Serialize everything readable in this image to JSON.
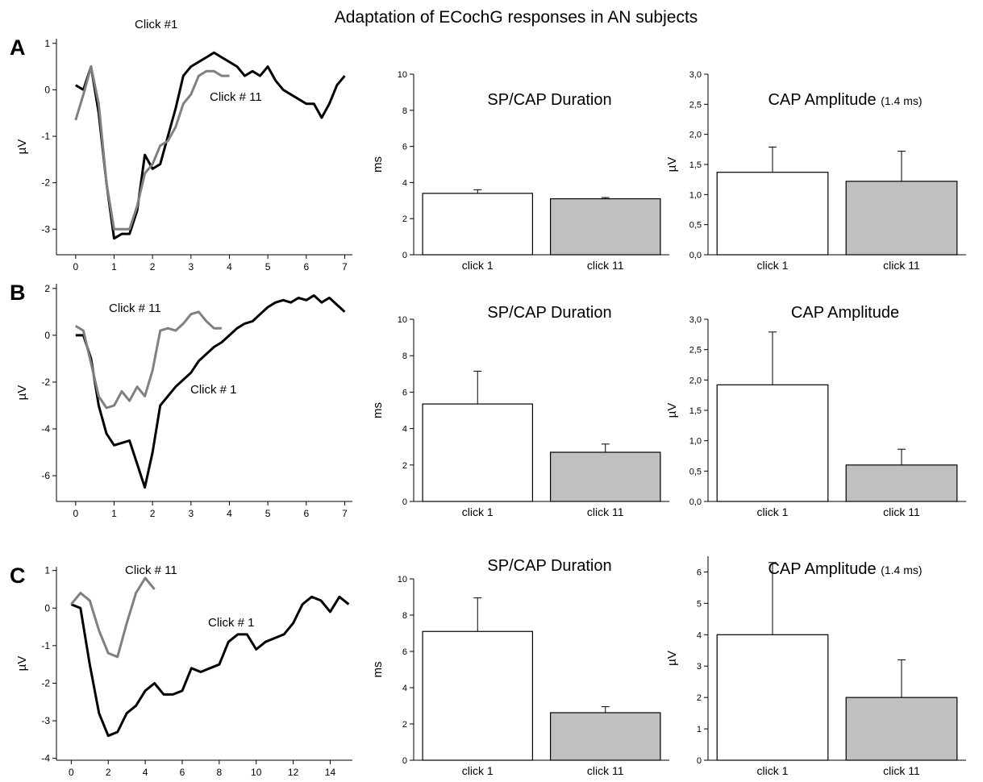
{
  "title": "Adaptation of ECochG responses in AN subjects",
  "chart_data": [
    {
      "type": "line",
      "panel": "A",
      "ylabel": "µV",
      "x": [
        0,
        0.2,
        0.4,
        0.6,
        0.8,
        1.0,
        1.2,
        1.4,
        1.6,
        1.8,
        2.0,
        2.2,
        2.4,
        2.6,
        2.8,
        3.0,
        3.2,
        3.4,
        3.6,
        3.8,
        4.0,
        4.2,
        4.4,
        4.6,
        4.8,
        5.0,
        5.2,
        5.4,
        5.6,
        5.8,
        6.0,
        6.2,
        6.4,
        6.6,
        6.8,
        7.0
      ],
      "series": [
        {
          "name": "Click #1",
          "color": "#000000",
          "values": [
            0.1,
            0.0,
            0.5,
            -0.5,
            -2.0,
            -3.2,
            -3.1,
            -3.1,
            -2.6,
            -1.4,
            -1.7,
            -1.6,
            -1.0,
            -0.4,
            0.3,
            0.5,
            0.6,
            0.7,
            0.8,
            0.7,
            0.6,
            0.5,
            0.3,
            0.4,
            0.3,
            0.5,
            0.2,
            0.0,
            -0.1,
            -0.2,
            -0.3,
            -0.3,
            -0.6,
            -0.3,
            0.1,
            0.3
          ]
        },
        {
          "name": "Click # 11",
          "color": "#808080",
          "values": [
            -0.65,
            -0.1,
            0.5,
            -0.3,
            -2.0,
            -3.0,
            -3.0,
            -3.0,
            -2.5,
            -1.8,
            -1.6,
            -1.2,
            -1.1,
            -0.8,
            -0.3,
            -0.1,
            0.3,
            0.4,
            0.4,
            0.3,
            0.3,
            null,
            null,
            null,
            null,
            null,
            null,
            null,
            null,
            null,
            null,
            null,
            null,
            null,
            null,
            null
          ]
        }
      ],
      "xlim": [
        -0.5,
        7.2
      ],
      "xticks": [
        0,
        1,
        2,
        3,
        4,
        5,
        6,
        7
      ],
      "ylim": [
        -3.55,
        1.1
      ],
      "yticks": [
        -3,
        -2,
        -1,
        0,
        1
      ]
    },
    {
      "type": "bar",
      "title": "SP/CAP Duration",
      "ylabel": "ms",
      "categories": [
        "click 1",
        "click 11"
      ],
      "values": [
        3.4,
        3.1
      ],
      "errors": [
        0.2,
        0.07
      ],
      "colors": [
        "#ffffff",
        "#c0c0c0"
      ],
      "ylim": [
        0,
        10
      ],
      "yticks": [
        0,
        2,
        4,
        6,
        8,
        10
      ]
    },
    {
      "type": "bar",
      "title": "CAP Amplitude",
      "subtitle": "(1.4 ms)",
      "ylabel": "µV",
      "categories": [
        "click 1",
        "click 11"
      ],
      "values": [
        1.37,
        1.22
      ],
      "errors": [
        0.42,
        0.5
      ],
      "colors": [
        "#ffffff",
        "#c0c0c0"
      ],
      "ylim": [
        0,
        3
      ],
      "yticks": [
        {
          "value": 0,
          "label": "0,0"
        },
        {
          "value": 0.5,
          "label": "0,5"
        },
        {
          "value": 1,
          "label": "1,0"
        },
        {
          "value": 1.5,
          "label": "1,5"
        },
        {
          "value": 2,
          "label": "2,0"
        },
        {
          "value": 2.5,
          "label": "2,5"
        },
        {
          "value": 3,
          "label": "3,0"
        }
      ]
    },
    {
      "type": "line",
      "panel": "B",
      "ylabel": "µV",
      "x": [
        0,
        0.2,
        0.4,
        0.6,
        0.8,
        1.0,
        1.2,
        1.4,
        1.6,
        1.8,
        2.0,
        2.2,
        2.4,
        2.6,
        2.8,
        3.0,
        3.2,
        3.4,
        3.6,
        3.8,
        4.0,
        4.2,
        4.4,
        4.6,
        4.8,
        5.0,
        5.2,
        5.4,
        5.6,
        5.8,
        6.0,
        6.2,
        6.4,
        6.6,
        6.8,
        7.0
      ],
      "series": [
        {
          "name": "Click # 1",
          "color": "#000000",
          "values": [
            0.0,
            0.0,
            -1.0,
            -3.0,
            -4.2,
            -4.7,
            -4.6,
            -4.5,
            -5.5,
            -6.5,
            -5.0,
            -3.0,
            -2.6,
            -2.2,
            -1.9,
            -1.6,
            -1.1,
            -0.8,
            -0.5,
            -0.3,
            0.0,
            0.3,
            0.5,
            0.6,
            0.9,
            1.2,
            1.4,
            1.5,
            1.4,
            1.6,
            1.5,
            1.7,
            1.4,
            1.6,
            1.3,
            1.0
          ]
        },
        {
          "name": "Click # 11",
          "color": "#808080",
          "values": [
            0.4,
            0.2,
            -1.2,
            -2.6,
            -3.1,
            -3.0,
            -2.4,
            -2.8,
            -2.2,
            -2.6,
            -1.5,
            0.2,
            0.3,
            0.2,
            0.5,
            0.9,
            1.0,
            0.6,
            0.3,
            0.3,
            null,
            null,
            null,
            null,
            null,
            null,
            null,
            null,
            null,
            null,
            null,
            null,
            null,
            null,
            null,
            null
          ]
        }
      ],
      "xlim": [
        -0.5,
        7.2
      ],
      "xticks": [
        0,
        1,
        2,
        3,
        4,
        5,
        6,
        7
      ],
      "ylim": [
        -7.1,
        2.2
      ],
      "yticks": [
        -6,
        -4,
        -2,
        0,
        2
      ]
    },
    {
      "type": "bar",
      "title": "SP/CAP Duration",
      "ylabel": "ms",
      "categories": [
        "click 1",
        "click 11"
      ],
      "values": [
        5.35,
        2.7
      ],
      "errors": [
        1.8,
        0.45
      ],
      "colors": [
        "#ffffff",
        "#c0c0c0"
      ],
      "ylim": [
        0,
        10
      ],
      "yticks": [
        0,
        2,
        4,
        6,
        8,
        10
      ]
    },
    {
      "type": "bar",
      "title": "CAP Amplitude",
      "ylabel": "µV",
      "categories": [
        "click 1",
        "click 11"
      ],
      "values": [
        1.92,
        0.6
      ],
      "errors": [
        0.87,
        0.26
      ],
      "colors": [
        "#ffffff",
        "#c0c0c0"
      ],
      "ylim": [
        0,
        3
      ],
      "yticks": [
        {
          "value": 0,
          "label": "0,0"
        },
        {
          "value": 0.5,
          "label": "0,5"
        },
        {
          "value": 1,
          "label": "1,0"
        },
        {
          "value": 1.5,
          "label": "1,5"
        },
        {
          "value": 2,
          "label": "2,0"
        },
        {
          "value": 2.5,
          "label": "2,5"
        },
        {
          "value": 3,
          "label": "3,0"
        }
      ]
    },
    {
      "type": "line",
      "panel": "C",
      "ylabel": "µV",
      "x": [
        0,
        0.5,
        1.0,
        1.5,
        2.0,
        2.5,
        3.0,
        3.5,
        4.0,
        4.5,
        5.0,
        5.5,
        6.0,
        6.5,
        7.0,
        7.5,
        8.0,
        8.5,
        9.0,
        9.5,
        10.0,
        10.5,
        11.0,
        11.5,
        12.0,
        12.5,
        13.0,
        13.5,
        14.0,
        14.5,
        15.0
      ],
      "series": [
        {
          "name": "Click # 1",
          "color": "#000000",
          "values": [
            0.1,
            0.0,
            -1.5,
            -2.8,
            -3.4,
            -3.3,
            -2.8,
            -2.6,
            -2.2,
            -2.0,
            -2.3,
            -2.3,
            -2.2,
            -1.6,
            -1.7,
            -1.6,
            -1.5,
            -0.9,
            -0.7,
            -0.7,
            -1.1,
            -0.9,
            -0.8,
            -0.7,
            -0.4,
            0.1,
            0.3,
            0.2,
            -0.1,
            0.3,
            0.1
          ]
        },
        {
          "name": "Click # 11",
          "color": "#808080",
          "values": [
            0.1,
            0.4,
            0.2,
            -0.6,
            -1.2,
            -1.3,
            -0.4,
            0.4,
            0.8,
            0.5,
            null,
            null,
            null,
            null,
            null,
            null,
            null,
            null,
            null,
            null,
            null,
            null,
            null,
            null,
            null,
            null,
            null,
            null,
            null,
            null,
            null
          ]
        }
      ],
      "xlim": [
        -0.8,
        15.2
      ],
      "xticks": [
        0,
        2,
        4,
        6,
        8,
        10,
        12,
        14
      ],
      "ylim": [
        -4.05,
        1.1
      ],
      "yticks": [
        -4,
        -3,
        -2,
        -1,
        0,
        1
      ]
    },
    {
      "type": "bar",
      "title": "SP/CAP Duration",
      "ylabel": "ms",
      "categories": [
        "click 1",
        "click 11"
      ],
      "values": [
        7.1,
        2.62
      ],
      "errors": [
        1.85,
        0.33
      ],
      "colors": [
        "#ffffff",
        "#c0c0c0"
      ],
      "ylim": [
        0,
        10
      ],
      "yticks": [
        0,
        2,
        4,
        6,
        8,
        10
      ]
    },
    {
      "type": "bar",
      "title": "CAP Amplitude",
      "subtitle": "(1.4 ms)",
      "ylabel": "µV",
      "categories": [
        "click 1",
        "click 11"
      ],
      "values": [
        4.0,
        2.0
      ],
      "errors": [
        2.3,
        1.2
      ],
      "colors": [
        "#ffffff",
        "#c0c0c0"
      ],
      "ylim": [
        0,
        6.5
      ],
      "yticks": [
        0,
        1,
        2,
        3,
        4,
        5,
        6
      ]
    }
  ]
}
